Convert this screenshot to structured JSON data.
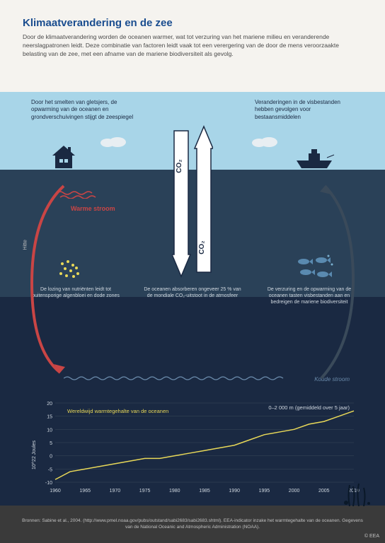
{
  "header": {
    "title": "Klimaatverandering en de zee",
    "subtitle": "Door de klimaatverandering worden de oceanen warmer, wat tot verzuring van het mariene milieu en veranderende neerslagpatronen leidt. Deze combinatie van factoren leidt vaak tot een verergering van de door de mens veroorzaakte belasting van de zee, met een afname van de mariene biodiversiteit als gevolg."
  },
  "sky": {
    "left_text": "Door het smelten van gletsjers, de opwarming van de oceanen en grondverschuivingen stijgt de zeespiegel",
    "right_text": "Veranderingen in de visbestanden hebben gevolgen voor bestaansmiddelen"
  },
  "labels": {
    "warm": "Warme stroom",
    "koude": "Koude stroom",
    "hitte": "Hitte",
    "co2": "CO₂"
  },
  "ocean": {
    "left": "De lozing van nutriënten leidt tot buitensporige algenbloei en dode zones",
    "center": "De oceanen absorberen ongeveer 25 % van de mondiale CO₂-uitstoot in de atmosfeer",
    "right": "De verzuring en de opwarming van de oceanen tasten visbestanden aan en bedreigen de mariene biodiversiteit"
  },
  "chart": {
    "title": "Wereldwijd warmtegehalte van de oceanen",
    "right_label": "0–2 000 m (gemiddeld over 5 jaar)",
    "y_label": "10^22 Joules",
    "y_ticks": [
      "-10",
      "-5",
      "0",
      "5",
      "10",
      "15",
      "20"
    ],
    "x_ticks": [
      "1960",
      "1965",
      "1970",
      "1975",
      "1980",
      "1985",
      "1990",
      "1995",
      "2000",
      "2005",
      "2010"
    ],
    "line_color": "#e8d858",
    "grid_color": "#3a4a5a",
    "points": [
      [
        0,
        -9
      ],
      [
        5,
        -6
      ],
      [
        10,
        -5
      ],
      [
        15,
        -4
      ],
      [
        20,
        -3
      ],
      [
        25,
        -2
      ],
      [
        30,
        -1
      ],
      [
        35,
        -1
      ],
      [
        40,
        0
      ],
      [
        45,
        1
      ],
      [
        50,
        2
      ],
      [
        55,
        3
      ],
      [
        60,
        4
      ],
      [
        65,
        6
      ],
      [
        70,
        8
      ],
      [
        75,
        9
      ],
      [
        80,
        10
      ],
      [
        85,
        12
      ],
      [
        90,
        13
      ],
      [
        95,
        15
      ],
      [
        100,
        17
      ]
    ]
  },
  "footer": {
    "source": "Bronnen: Sabine et al., 2004. (http://www.pmel.noaa.gov/pubs/outstand/sabi2683/sabi2683.shtml). EEA-indicator inzake het warmtegehalte van de oceanen. Gegevens van de National Oceanic and Atmospheric Administration (NOAA).",
    "copyright": "© EEA"
  },
  "colors": {
    "sky": "#a8d5e8",
    "ocean_upper": "#2a4158",
    "ocean_lower": "#1a2942",
    "dark": "#1a2942",
    "warm_red": "#c94545",
    "cold_blue": "#6a8aaa",
    "yellow": "#e8d858"
  }
}
